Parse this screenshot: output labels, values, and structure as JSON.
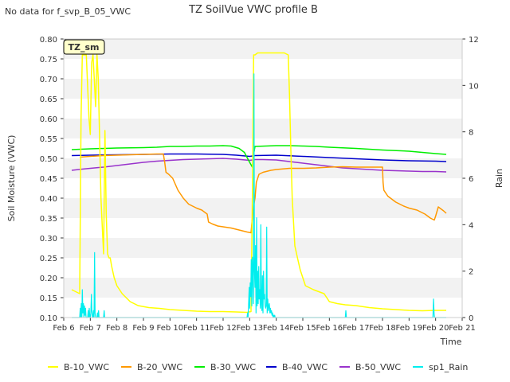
{
  "chart_data": {
    "type": "line",
    "title": "TZ SoilVue VWC profile B",
    "note": "No data for f_svp_B_05_VWC",
    "badge": "TZ_sm",
    "xlabel": "Time",
    "ylabel": "Soil Moisture (VWC)",
    "y2label": "Rain",
    "xlim": [
      6,
      21
    ],
    "ylim": [
      0.1,
      0.8
    ],
    "y2lim": [
      0,
      12
    ],
    "x_ticks": [
      6,
      7,
      8,
      9,
      10,
      11,
      12,
      13,
      14,
      15,
      16,
      17,
      18,
      19,
      20,
      21
    ],
    "x_tick_labels": [
      "Feb 6",
      "Feb 7",
      "Feb 8",
      "Feb 9",
      "Feb 10",
      "Feb 11",
      "Feb 12",
      "Feb 13",
      "Feb 14",
      "Feb 15",
      "Feb 16",
      "Feb 17",
      "Feb 18",
      "Feb 19",
      "Feb 20",
      "Feb 21"
    ],
    "y_ticks": [
      0.1,
      0.15,
      0.2,
      0.25,
      0.3,
      0.35,
      0.4,
      0.45,
      0.5,
      0.55,
      0.6,
      0.65,
      0.7,
      0.75,
      0.8
    ],
    "y_tick_labels": [
      "0.10",
      "0.15",
      "0.20",
      "0.25",
      "0.30",
      "0.35",
      "0.40",
      "0.45",
      "0.50",
      "0.55",
      "0.60",
      "0.65",
      "0.70",
      "0.75",
      "0.80"
    ],
    "y2_ticks": [
      0,
      2,
      4,
      6,
      8,
      10,
      12
    ],
    "y2_tick_labels": [
      "0",
      "2",
      "4",
      "6",
      "8",
      "10",
      "12"
    ],
    "series": [
      {
        "name": "B-10_VWC",
        "color": "#ffff00",
        "axis": "left",
        "x": [
          6.3,
          6.6,
          6.65,
          6.7,
          6.75,
          6.85,
          6.95,
          7.0,
          7.05,
          7.1,
          7.15,
          7.2,
          7.25,
          7.3,
          7.35,
          7.4,
          7.45,
          7.5,
          7.55,
          7.6,
          7.65,
          7.7,
          7.75,
          7.8,
          7.9,
          8.0,
          8.2,
          8.5,
          8.8,
          9.2,
          9.6,
          10.0,
          10.5,
          11.0,
          11.5,
          12.0,
          12.5,
          12.9,
          13.05,
          13.1,
          13.15,
          13.2,
          13.3,
          13.6,
          14.0,
          14.3,
          14.45,
          14.5,
          14.55,
          14.6,
          14.7,
          14.8,
          14.9,
          15.1,
          15.4,
          15.8,
          16.0,
          16.3,
          16.6,
          17.0,
          17.5,
          18.0,
          18.5,
          19.0,
          19.5,
          20.0,
          20.4
        ],
        "y": [
          0.17,
          0.16,
          0.6,
          0.76,
          0.76,
          0.76,
          0.6,
          0.56,
          0.74,
          0.76,
          0.7,
          0.63,
          0.76,
          0.7,
          0.55,
          0.4,
          0.33,
          0.26,
          0.57,
          0.36,
          0.26,
          0.25,
          0.25,
          0.23,
          0.2,
          0.18,
          0.16,
          0.14,
          0.13,
          0.125,
          0.123,
          0.12,
          0.118,
          0.116,
          0.115,
          0.115,
          0.114,
          0.113,
          0.115,
          0.4,
          0.76,
          0.76,
          0.765,
          0.765,
          0.765,
          0.765,
          0.76,
          0.66,
          0.52,
          0.4,
          0.28,
          0.25,
          0.22,
          0.18,
          0.17,
          0.16,
          0.14,
          0.135,
          0.132,
          0.13,
          0.125,
          0.122,
          0.12,
          0.118,
          0.117,
          0.118,
          0.118
        ]
      },
      {
        "name": "B-20_VWC",
        "color": "#ff9900",
        "axis": "left",
        "x": [
          6.6,
          7.0,
          7.5,
          8.0,
          8.5,
          9.0,
          9.5,
          9.75,
          9.8,
          9.85,
          9.95,
          10.1,
          10.3,
          10.5,
          10.7,
          11.0,
          11.2,
          11.4,
          11.45,
          11.6,
          11.8,
          12.0,
          12.3,
          12.6,
          12.9,
          13.05,
          13.1,
          13.15,
          13.2,
          13.25,
          13.35,
          13.5,
          13.8,
          14.0,
          14.5,
          15.0,
          15.5,
          16.0,
          16.5,
          17.0,
          17.5,
          17.9,
          18.0,
          18.02,
          18.05,
          18.2,
          18.5,
          18.8,
          19.0,
          19.3,
          19.6,
          19.8,
          19.95,
          20.0,
          20.1,
          20.3,
          20.4
        ],
        "y": [
          0.503,
          0.505,
          0.507,
          0.508,
          0.509,
          0.51,
          0.511,
          0.511,
          0.49,
          0.465,
          0.46,
          0.45,
          0.42,
          0.4,
          0.385,
          0.375,
          0.37,
          0.36,
          0.34,
          0.335,
          0.33,
          0.328,
          0.325,
          0.32,
          0.315,
          0.313,
          0.35,
          0.38,
          0.4,
          0.44,
          0.46,
          0.465,
          0.47,
          0.472,
          0.475,
          0.475,
          0.476,
          0.478,
          0.479,
          0.478,
          0.478,
          0.478,
          0.478,
          0.44,
          0.42,
          0.405,
          0.39,
          0.38,
          0.375,
          0.37,
          0.36,
          0.35,
          0.345,
          0.355,
          0.378,
          0.368,
          0.362
        ]
      },
      {
        "name": "B-30_VWC",
        "color": "#00ee00",
        "axis": "left",
        "x": [
          6.3,
          7.0,
          8.0,
          9.0,
          9.5,
          10.0,
          10.5,
          11.0,
          11.5,
          12.0,
          12.3,
          12.6,
          12.8,
          13.0,
          13.1,
          13.15,
          13.2,
          14.0,
          14.5,
          15.0,
          15.5,
          16.0,
          17.0,
          18.0,
          19.0,
          19.5,
          20.0,
          20.4
        ],
        "y": [
          0.522,
          0.524,
          0.526,
          0.527,
          0.528,
          0.53,
          0.53,
          0.531,
          0.531,
          0.532,
          0.531,
          0.525,
          0.515,
          0.49,
          0.478,
          0.51,
          0.53,
          0.532,
          0.532,
          0.531,
          0.53,
          0.528,
          0.525,
          0.521,
          0.518,
          0.515,
          0.512,
          0.51
        ]
      },
      {
        "name": "B-40_VWC",
        "color": "#0000cc",
        "axis": "left",
        "x": [
          6.3,
          7.0,
          8.0,
          9.0,
          10.0,
          11.0,
          12.0,
          12.5,
          13.0,
          13.2,
          14.0,
          15.0,
          16.0,
          17.0,
          18.0,
          19.0,
          20.0,
          20.4
        ],
        "y": [
          0.507,
          0.508,
          0.509,
          0.51,
          0.511,
          0.511,
          0.51,
          0.508,
          0.505,
          0.507,
          0.508,
          0.505,
          0.502,
          0.499,
          0.496,
          0.494,
          0.493,
          0.492
        ]
      },
      {
        "name": "B-50_VWC",
        "color": "#9933cc",
        "axis": "left",
        "x": [
          6.3,
          6.7,
          7.0,
          7.5,
          8.0,
          8.5,
          9.0,
          9.5,
          10.0,
          10.5,
          11.0,
          11.5,
          12.0,
          12.5,
          13.0,
          13.2,
          13.5,
          14.0,
          14.5,
          15.0,
          15.5,
          16.0,
          16.5,
          17.0,
          17.5,
          18.0,
          18.5,
          19.0,
          19.5,
          20.0,
          20.4
        ],
        "y": [
          0.47,
          0.473,
          0.475,
          0.478,
          0.482,
          0.486,
          0.49,
          0.493,
          0.495,
          0.497,
          0.498,
          0.499,
          0.5,
          0.498,
          0.495,
          0.497,
          0.497,
          0.496,
          0.492,
          0.488,
          0.484,
          0.48,
          0.476,
          0.474,
          0.472,
          0.47,
          0.469,
          0.468,
          0.467,
          0.467,
          0.466
        ]
      },
      {
        "name": "sp1_Rain",
        "color": "#00eeee",
        "axis": "right",
        "x": [
          6.3,
          6.6,
          6.62,
          6.64,
          6.66,
          6.68,
          6.7,
          6.72,
          6.74,
          6.76,
          6.78,
          6.8,
          6.82,
          6.84,
          6.86,
          6.9,
          6.92,
          6.94,
          6.96,
          6.98,
          7.0,
          7.02,
          7.04,
          7.06,
          7.08,
          7.1,
          7.12,
          7.14,
          7.16,
          7.18,
          7.2,
          7.25,
          7.27,
          7.29,
          7.31,
          7.33,
          7.5,
          7.52,
          7.54,
          7.56,
          7.58,
          12.9,
          12.92,
          12.94,
          12.96,
          12.98,
          13.0,
          13.02,
          13.04,
          13.06,
          13.08,
          13.1,
          13.12,
          13.14,
          13.16,
          13.18,
          13.2,
          13.22,
          13.24,
          13.26,
          13.28,
          13.3,
          13.32,
          13.34,
          13.36,
          13.38,
          13.4,
          13.42,
          13.44,
          13.46,
          13.48,
          13.5,
          13.52,
          13.54,
          13.56,
          13.58,
          13.6,
          13.62,
          13.64,
          13.66,
          13.68,
          13.7,
          13.72,
          13.74,
          13.76,
          13.78,
          13.8,
          13.82,
          13.84,
          13.86,
          13.88,
          13.9,
          13.92,
          13.94,
          13.96,
          13.98,
          14.0,
          14.02,
          14.04,
          14.06,
          14.08,
          14.1,
          16.6,
          16.62,
          16.64,
          16.66,
          16.68,
          19.9,
          19.92,
          19.94,
          19.96,
          19.98,
          20.4
        ],
        "y": [
          0,
          0,
          0.4,
          0,
          0.6,
          0,
          1.2,
          0.2,
          0.6,
          0,
          0.5,
          0.1,
          0.4,
          0,
          0,
          0,
          0.3,
          0,
          0.4,
          0,
          0,
          0.2,
          1.0,
          0.3,
          0,
          0,
          0.3,
          0,
          2.8,
          0.2,
          0,
          0,
          0.2,
          0,
          0.3,
          0,
          0,
          0.3,
          0,
          0,
          0,
          0,
          0.2,
          0,
          0.6,
          1.3,
          0.4,
          1.5,
          0.9,
          2.5,
          0.5,
          2.6,
          1.8,
          0.6,
          10.5,
          2.0,
          1.3,
          3.1,
          0.2,
          4.3,
          0.5,
          2.0,
          0.6,
          2.2,
          0.8,
          1.2,
          0.4,
          4.0,
          0.6,
          0.3,
          1.8,
          0.2,
          2.0,
          0.8,
          1.0,
          0.5,
          0.4,
          0.5,
          3.9,
          0.2,
          0.8,
          0.3,
          0.5,
          0.6,
          0.2,
          0.4,
          0.2,
          0.3,
          0.1,
          0.2,
          0,
          0.1,
          0,
          0.1,
          0,
          0,
          0,
          0,
          0,
          0,
          0,
          0,
          0,
          0.3,
          0,
          0,
          0,
          0,
          0.8,
          0.2,
          0,
          0,
          0
        ]
      }
    ]
  }
}
